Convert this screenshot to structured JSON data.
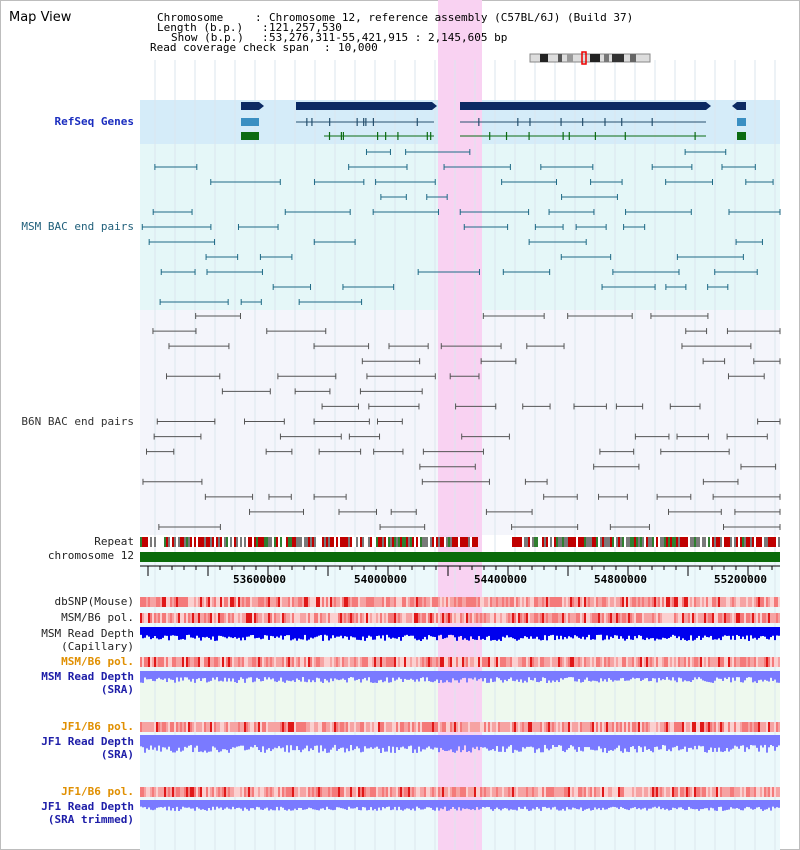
{
  "view_title": "Map View",
  "info": {
    "chromosome_key": "Chromosome",
    "chromosome_value": "Chromosome 12, reference assembly (C57BL/6J) (Build 37)",
    "length_key": "Length (b.p.)",
    "length_value": "121,257,530",
    "show_key": "Show (b.p.)",
    "show_value": "53,276,311-55,421,915 : 2,145,605 bp",
    "coverage_key": "Read coverage check span",
    "coverage_value": "10,000"
  },
  "tracks": {
    "refseq": "RefSeq Genes",
    "msm_bac": "MSM BAC end pairs",
    "b6n_bac": "B6N BAC end pairs",
    "repeat": "Repeat",
    "chromosome": "chromosome 12",
    "dbsnp": "dbSNP(Mouse)",
    "msm_b6_pol_1": "MSM/B6 pol.",
    "msm_read_cap_1": "MSM Read Depth",
    "msm_read_cap_2": "(Capillary)",
    "msm_b6_pol_2": "MSM/B6 pol.",
    "msm_read_sra_1": "MSM Read Depth",
    "msm_read_sra_2": "(SRA)",
    "jf1_b6_pol_1": "JF1/B6 pol.",
    "jf1_read_sra_1": "JF1 Read Depth",
    "jf1_read_sra_2": "(SRA)",
    "jf1_b6_pol_2": "JF1/B6 pol.",
    "jf1_read_trim_1": "JF1 Read Depth",
    "jf1_read_trim_2": "(SRA trimmed)"
  },
  "axis": {
    "ticks": [
      "53600000",
      "54000000",
      "54400000",
      "54800000",
      "55200000"
    ]
  },
  "colors": {
    "highlight": "#f9d2f2",
    "refseq_band": "#d5ecf9",
    "msm_band": "#e5f7f8",
    "gene_navy": "#0d2a63",
    "gene_teal": "#3a8fc2",
    "gene_green": "#0b6b12",
    "chromosome_bar": "#0a6b0a",
    "read_depth_dark": "#0000ee",
    "read_depth_light": "#7a7aff"
  }
}
